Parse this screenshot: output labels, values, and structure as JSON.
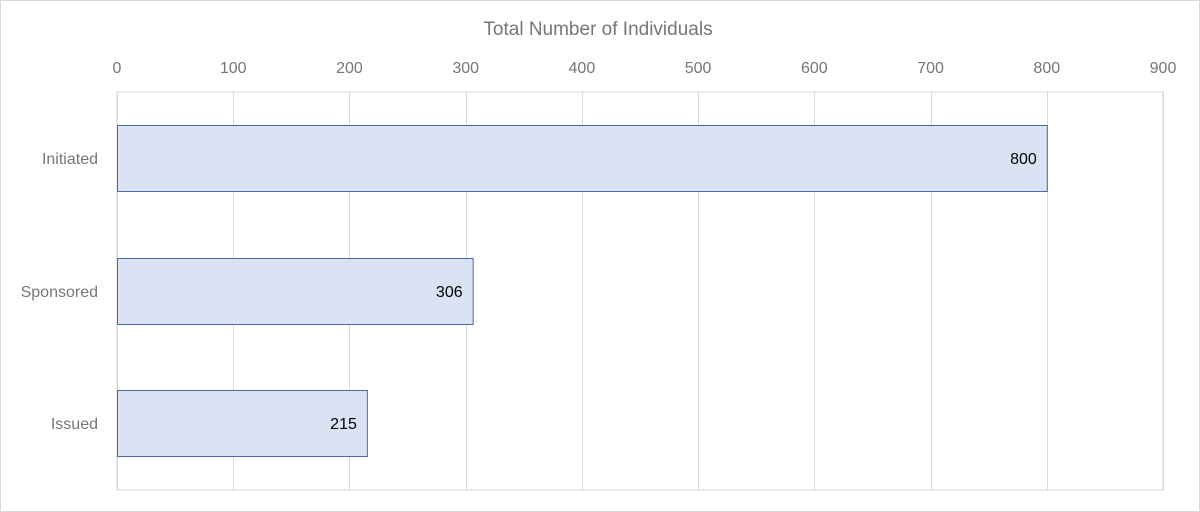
{
  "chart_data": {
    "type": "bar",
    "orientation": "horizontal",
    "title": "",
    "xlabel": "Total Number of Individuals",
    "ylabel": "",
    "x_axis_position": "top",
    "xlim": [
      0,
      900
    ],
    "x_ticks": [
      0,
      100,
      200,
      300,
      400,
      500,
      600,
      700,
      800,
      900
    ],
    "grid": true,
    "legend": "none",
    "categories": [
      "Initiated",
      "Sponsored",
      "Issued"
    ],
    "values": [
      800,
      306,
      215
    ],
    "data_labels": [
      "800",
      "306",
      "215"
    ],
    "colors": {
      "bar_fill": "#dae3f3",
      "bar_stroke": "#4a6aa5"
    }
  }
}
